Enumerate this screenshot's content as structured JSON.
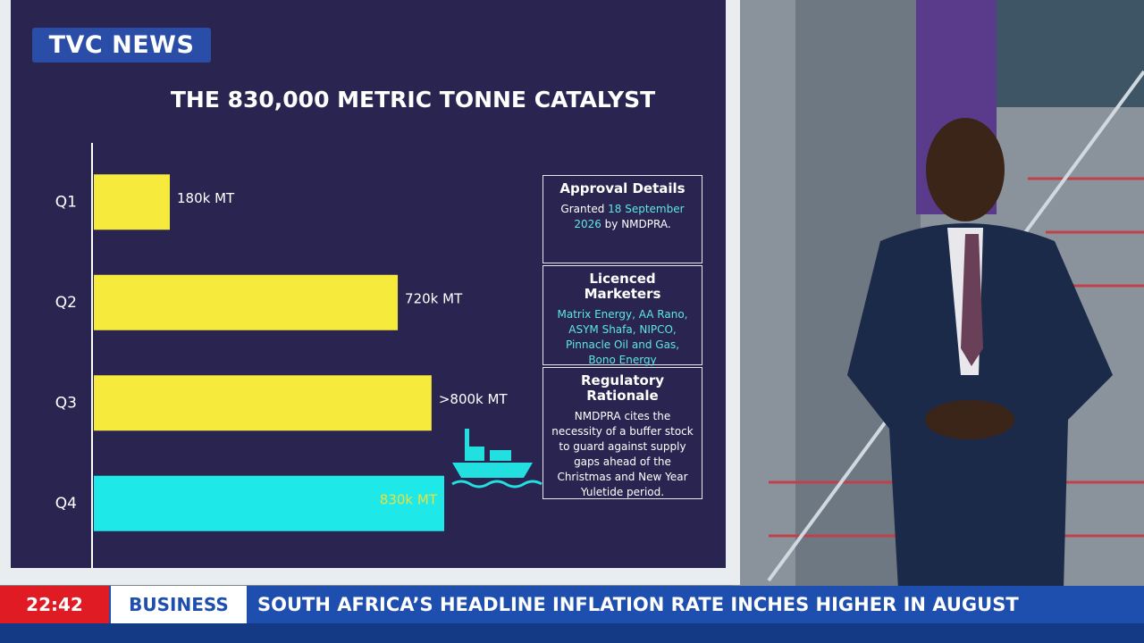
{
  "broadcast": {
    "logo": "TVC NEWS",
    "time": "22:42",
    "section": "BUSINESS",
    "headline": "SOUTH AFRICA’S HEADLINE INFLATION RATE INCHES HIGHER IN AUGUST"
  },
  "chart_data": {
    "type": "bar",
    "orientation": "horizontal",
    "title": "THE 830,000 METRIC TONNE CATALYST",
    "categories": [
      "Q1",
      "Q2",
      "Q3",
      "Q4"
    ],
    "values": [
      180,
      720,
      800,
      830
    ],
    "value_labels": [
      "180k MT",
      "720k MT",
      ">800k MT",
      "830k MT"
    ],
    "colors": [
      "#f6ea3c",
      "#f6ea3c",
      "#f6ea3c",
      "#1fe8e8"
    ]
  },
  "panel": [
    {
      "title": "Approval Details",
      "text": [
        "Granted ",
        "18 September 2026",
        " by NMDPRA."
      ]
    },
    {
      "title": "Licenced Marketers",
      "text": [
        "Matrix Energy, AA Rano, ASYM Shafa, NIPCO, Pinnacle Oil and Gas, Bono Energy"
      ]
    },
    {
      "title": "Regulatory Rationale",
      "text": [
        "NMDPRA cites the necessity of a buffer stock to guard against supply gaps ahead of the Christmas and New Year Yuletide period."
      ]
    }
  ]
}
